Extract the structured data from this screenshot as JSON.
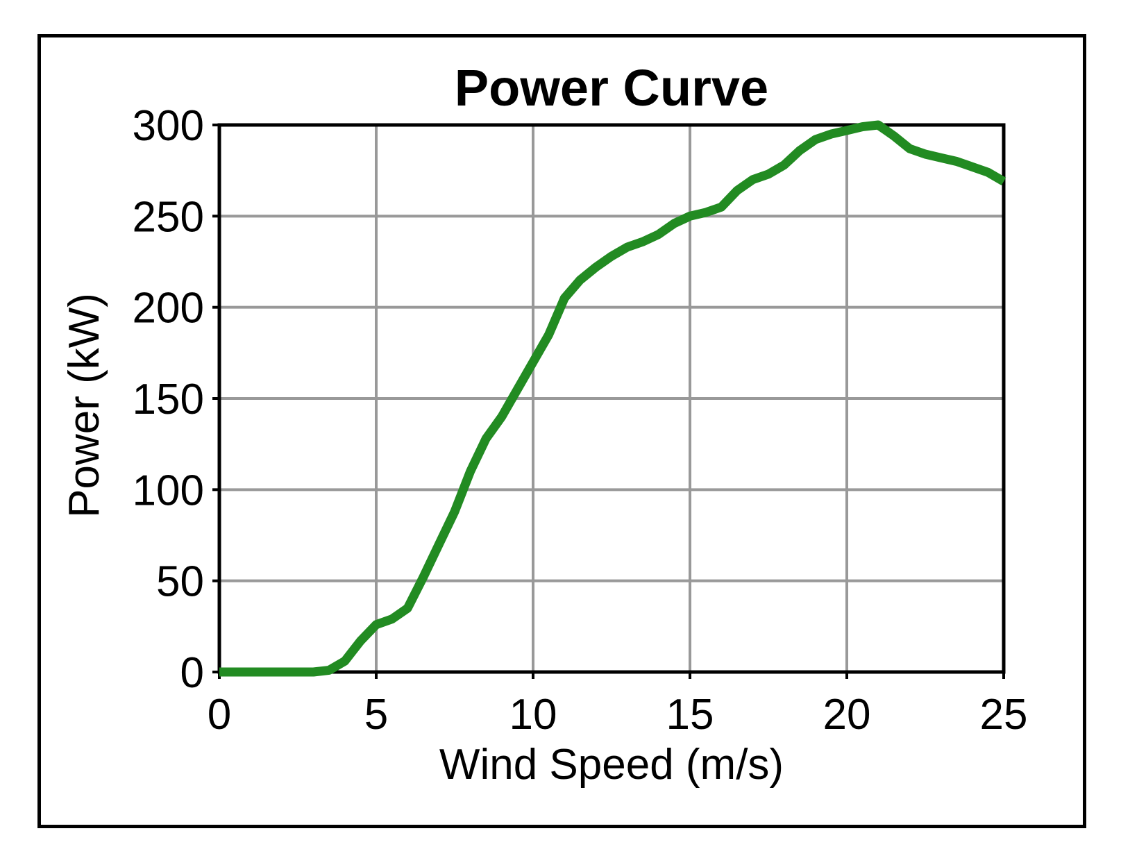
{
  "chart_data": {
    "type": "line",
    "title": "Power Curve",
    "xlabel": "Wind Speed (m/s)",
    "ylabel": "Power (kW)",
    "xlim": [
      0,
      25
    ],
    "ylim": [
      0,
      300
    ],
    "x_ticks": [
      "0",
      "5",
      "10",
      "15",
      "20",
      "25"
    ],
    "y_ticks": [
      "0",
      "50",
      "100",
      "150",
      "200",
      "250",
      "300"
    ],
    "grid": true,
    "legend": "none",
    "series": [
      {
        "color": "#228b22",
        "x": [
          0,
          1,
          2,
          3,
          3.5,
          4,
          4.5,
          5,
          5.5,
          6,
          6.5,
          7,
          7.5,
          8,
          8.5,
          9,
          9.5,
          10,
          10.5,
          11,
          11.5,
          12,
          12.5,
          13,
          13.5,
          14,
          14.5,
          15,
          15.5,
          16,
          16.5,
          17,
          17.5,
          18,
          18.5,
          19,
          19.5,
          20,
          20.5,
          21,
          21.5,
          22,
          22.5,
          23,
          23.5,
          24,
          24.5,
          25
        ],
        "y": [
          0,
          0,
          0,
          0,
          1,
          6,
          17,
          26,
          29,
          35,
          52,
          70,
          88,
          110,
          128,
          140,
          155,
          170,
          185,
          205,
          215,
          222,
          228,
          233,
          236,
          240,
          246,
          250,
          252,
          255,
          264,
          270,
          273,
          278,
          286,
          292,
          295,
          297,
          299,
          300,
          294,
          287,
          284,
          282,
          280,
          277,
          274,
          269
        ]
      }
    ]
  }
}
